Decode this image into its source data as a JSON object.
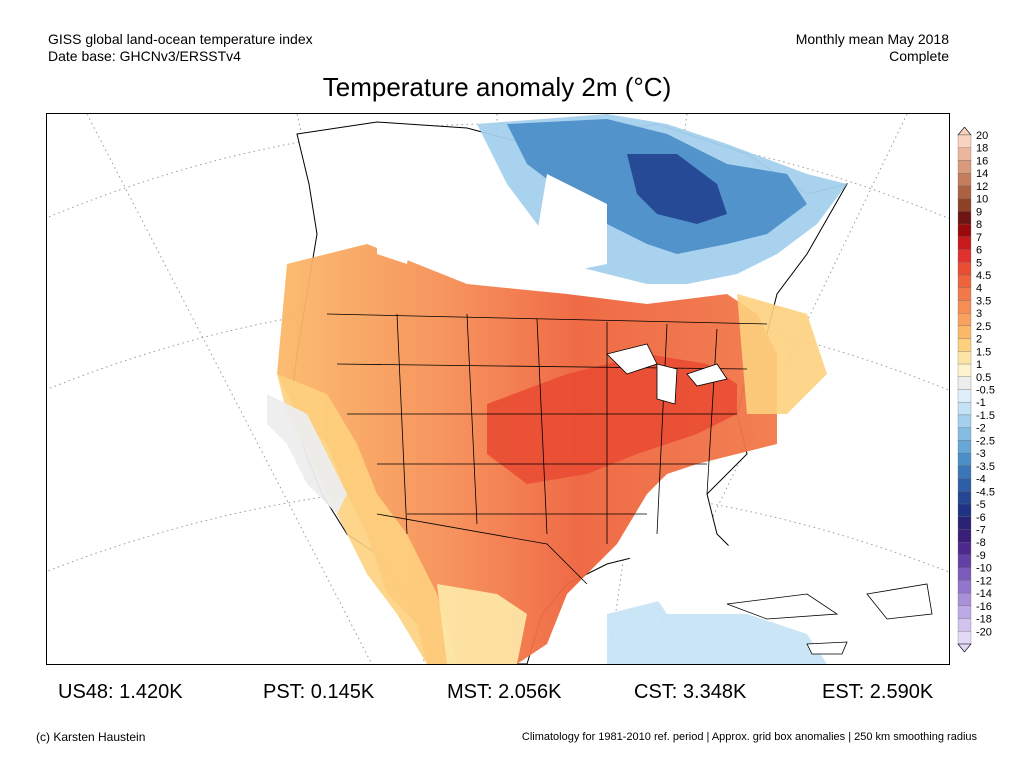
{
  "header": {
    "left_line1": "GISS global land-ocean temperature index",
    "left_line2": "Date base: GHCNv3/ERSSTv4",
    "right_line1": "Monthly mean May 2018",
    "right_line2": "Complete"
  },
  "title": "Temperature anomaly 2m (°C)",
  "stats": [
    {
      "label": "US48: 1.420K"
    },
    {
      "label": "PST: 0.145K"
    },
    {
      "label": "MST: 2.056K"
    },
    {
      "label": "CST: 3.348K"
    },
    {
      "label": "EST: 2.590K"
    }
  ],
  "footer": {
    "credit": "(c) Karsten Haustein",
    "note": "Climatology for 1981-2010 ref. period | Approx. grid box anomalies | 250 km smoothing radius"
  },
  "colorbar": {
    "levels": [
      {
        "label": "20",
        "color": "#f7d3c0"
      },
      {
        "label": "18",
        "color": "#ebb69b"
      },
      {
        "label": "16",
        "color": "#d99a7b"
      },
      {
        "label": "14",
        "color": "#c57e5d"
      },
      {
        "label": "12",
        "color": "#ac6140"
      },
      {
        "label": "10",
        "color": "#8f4226"
      },
      {
        "label": "9",
        "color": "#6e1513"
      },
      {
        "label": "8",
        "color": "#9a0a0c"
      },
      {
        "label": "7",
        "color": "#c81a1c"
      },
      {
        "label": "6",
        "color": "#e0312c"
      },
      {
        "label": "5",
        "color": "#e94d33"
      },
      {
        "label": "4.5",
        "color": "#ee633c"
      },
      {
        "label": "4",
        "color": "#f2794a"
      },
      {
        "label": "3.5",
        "color": "#f68d55"
      },
      {
        "label": "3",
        "color": "#f9a15e"
      },
      {
        "label": "2.5",
        "color": "#fbb96a"
      },
      {
        "label": "2",
        "color": "#fdd07e"
      },
      {
        "label": "1.5",
        "color": "#fde6a5"
      },
      {
        "label": "1",
        "color": "#fdf3cd"
      },
      {
        "label": "0.5",
        "color": "#ededed"
      },
      {
        "label": "-0.5",
        "color": "#deeffb"
      },
      {
        "label": "-1",
        "color": "#c3e2f5"
      },
      {
        "label": "-1.5",
        "color": "#a3d0ec"
      },
      {
        "label": "-2",
        "color": "#84bde2"
      },
      {
        "label": "-2.5",
        "color": "#66a7d6"
      },
      {
        "label": "-3",
        "color": "#4c8fc8"
      },
      {
        "label": "-3.5",
        "color": "#3b76b8"
      },
      {
        "label": "-4",
        "color": "#2e5ea7"
      },
      {
        "label": "-4.5",
        "color": "#254693"
      },
      {
        "label": "-5",
        "color": "#1f3284"
      },
      {
        "label": "-6",
        "color": "#2a2375"
      },
      {
        "label": "-7",
        "color": "#3a1f78"
      },
      {
        "label": "-8",
        "color": "#4f2a8e"
      },
      {
        "label": "-9",
        "color": "#6440a6"
      },
      {
        "label": "-10",
        "color": "#7b5bba"
      },
      {
        "label": "-12",
        "color": "#9276cb"
      },
      {
        "label": "-14",
        "color": "#a891d9"
      },
      {
        "label": "-16",
        "color": "#bdaae5"
      },
      {
        "label": "-18",
        "color": "#d1c3ee"
      },
      {
        "label": "-20",
        "color": "#e2d9f5"
      }
    ]
  }
}
